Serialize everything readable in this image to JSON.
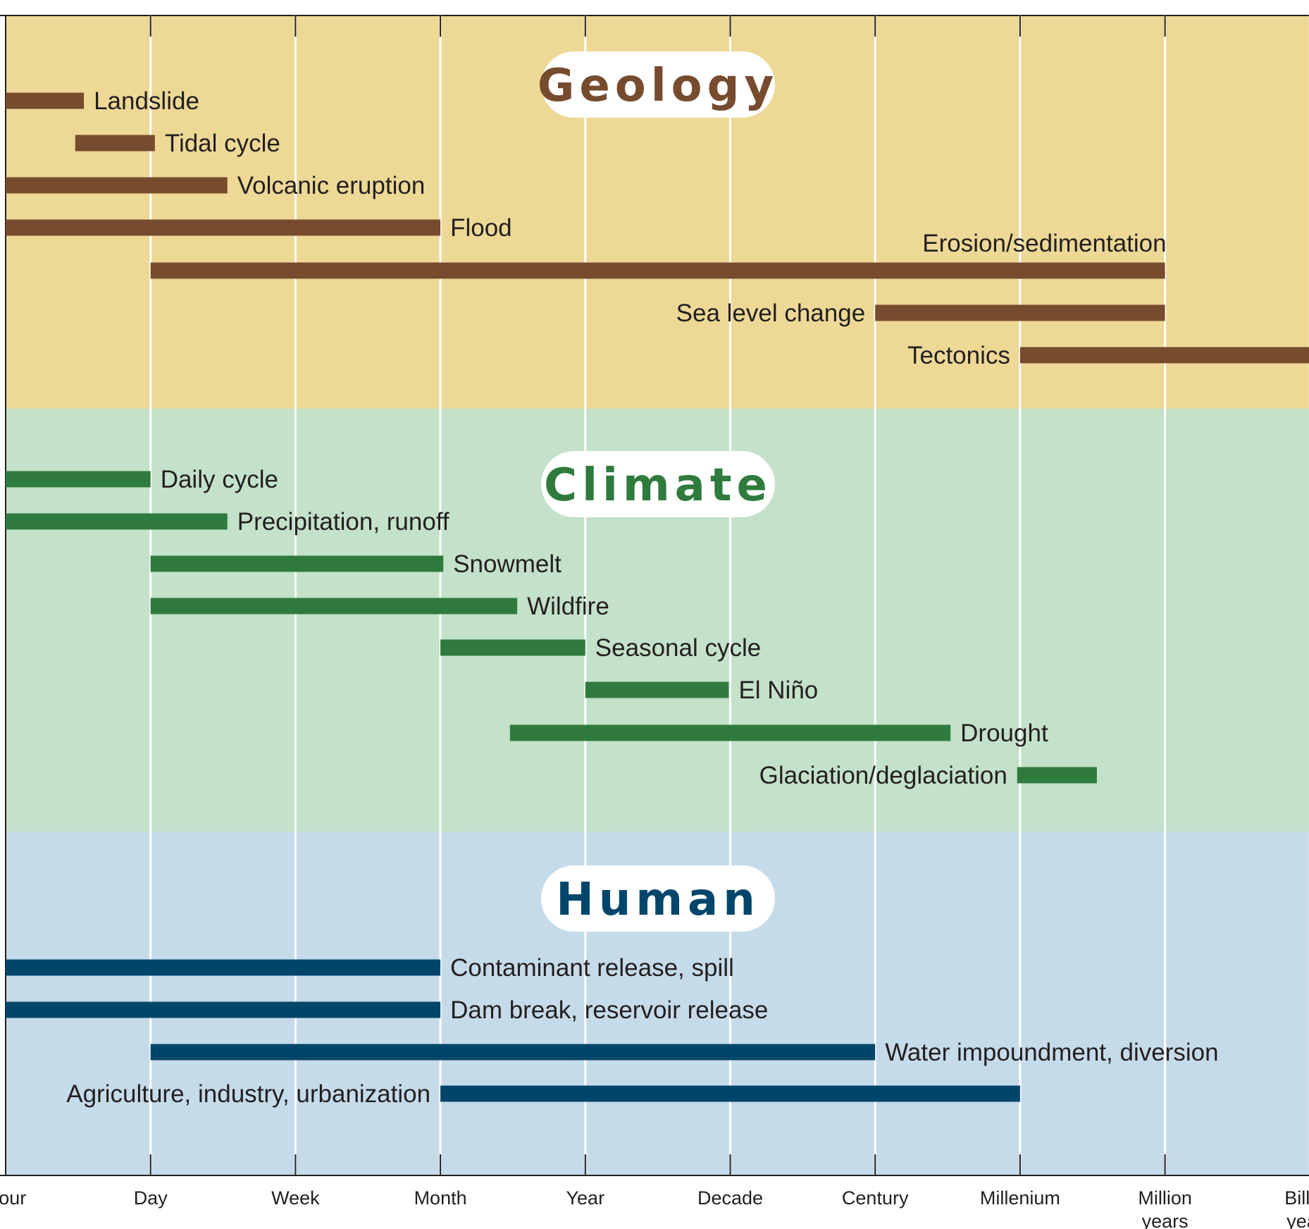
{
  "chart_data": {
    "type": "timeline",
    "x_axis": {
      "scale": "log-time",
      "ticks": [
        [
          "Hour"
        ],
        [
          "Day"
        ],
        [
          "Week"
        ],
        [
          "Month"
        ],
        [
          "Year"
        ],
        [
          "Decade"
        ],
        [
          "Century"
        ],
        [
          "Millenium"
        ],
        [
          "Million",
          "years"
        ],
        [
          "Billion",
          "years"
        ]
      ],
      "range": [
        "Hour",
        "Billion years"
      ]
    },
    "grid": true,
    "panels": [
      {
        "title": "Geology",
        "bg_color": "#edd896",
        "bar_color": "#774b2e",
        "title_color": "#774b2e",
        "bars": [
          {
            "label": "Landslide",
            "start": 0,
            "end": 0.54,
            "label_side": "right"
          },
          {
            "label": "Tidal cycle",
            "start": 0.48,
            "end": 1.03,
            "label_side": "right"
          },
          {
            "label": "Volcanic eruption",
            "start": 0,
            "end": 1.53,
            "label_side": "right"
          },
          {
            "label": "Flood",
            "start": 0,
            "end": 3.0,
            "label_side": "right"
          },
          {
            "label": "Erosion/sedimentation",
            "start": 1.0,
            "end": 8.0,
            "label_side": "above-right"
          },
          {
            "label": "Sea level change",
            "start": 6.0,
            "end": 8.0,
            "label_side": "left"
          },
          {
            "label": "Tectonics",
            "start": 7.0,
            "end": 9.0,
            "label_side": "left"
          }
        ]
      },
      {
        "title": "Climate",
        "bg_color": "#c4e1c9",
        "bar_color": "#2e7b3d",
        "title_color": "#2e7b3d",
        "bars": [
          {
            "label": "Daily cycle",
            "start": 0,
            "end": 1.0,
            "label_side": "right"
          },
          {
            "label": "Precipitation, runoff",
            "start": 0,
            "end": 1.53,
            "label_side": "right"
          },
          {
            "label": "Snowmelt",
            "start": 1.0,
            "end": 3.02,
            "label_side": "right"
          },
          {
            "label": "Wildfire",
            "start": 1.0,
            "end": 3.53,
            "label_side": "right"
          },
          {
            "label": "Seasonal cycle",
            "start": 3.0,
            "end": 4.0,
            "label_side": "right"
          },
          {
            "label": "El Niño",
            "start": 4.0,
            "end": 4.99,
            "label_side": "right"
          },
          {
            "label": "Drought",
            "start": 3.48,
            "end": 6.52,
            "label_side": "right"
          },
          {
            "label": "Glaciation/deglaciation",
            "start": 6.98,
            "end": 7.53,
            "label_side": "left"
          }
        ]
      },
      {
        "title": "Human",
        "bg_color": "#c6dbea",
        "bar_color": "#00466b",
        "title_color": "#00466b",
        "bars": [
          {
            "label": "Contaminant release, spill",
            "start": 0,
            "end": 3.0,
            "label_side": "right"
          },
          {
            "label": "Dam break, reservoir release",
            "start": 0,
            "end": 3.0,
            "label_side": "right"
          },
          {
            "label": "Water impoundment, diversion",
            "start": 1.0,
            "end": 6.0,
            "label_side": "right"
          },
          {
            "label": "Agriculture, industry, urbanization",
            "start": 3.0,
            "end": 7.0,
            "label_side": "left"
          }
        ]
      }
    ]
  }
}
